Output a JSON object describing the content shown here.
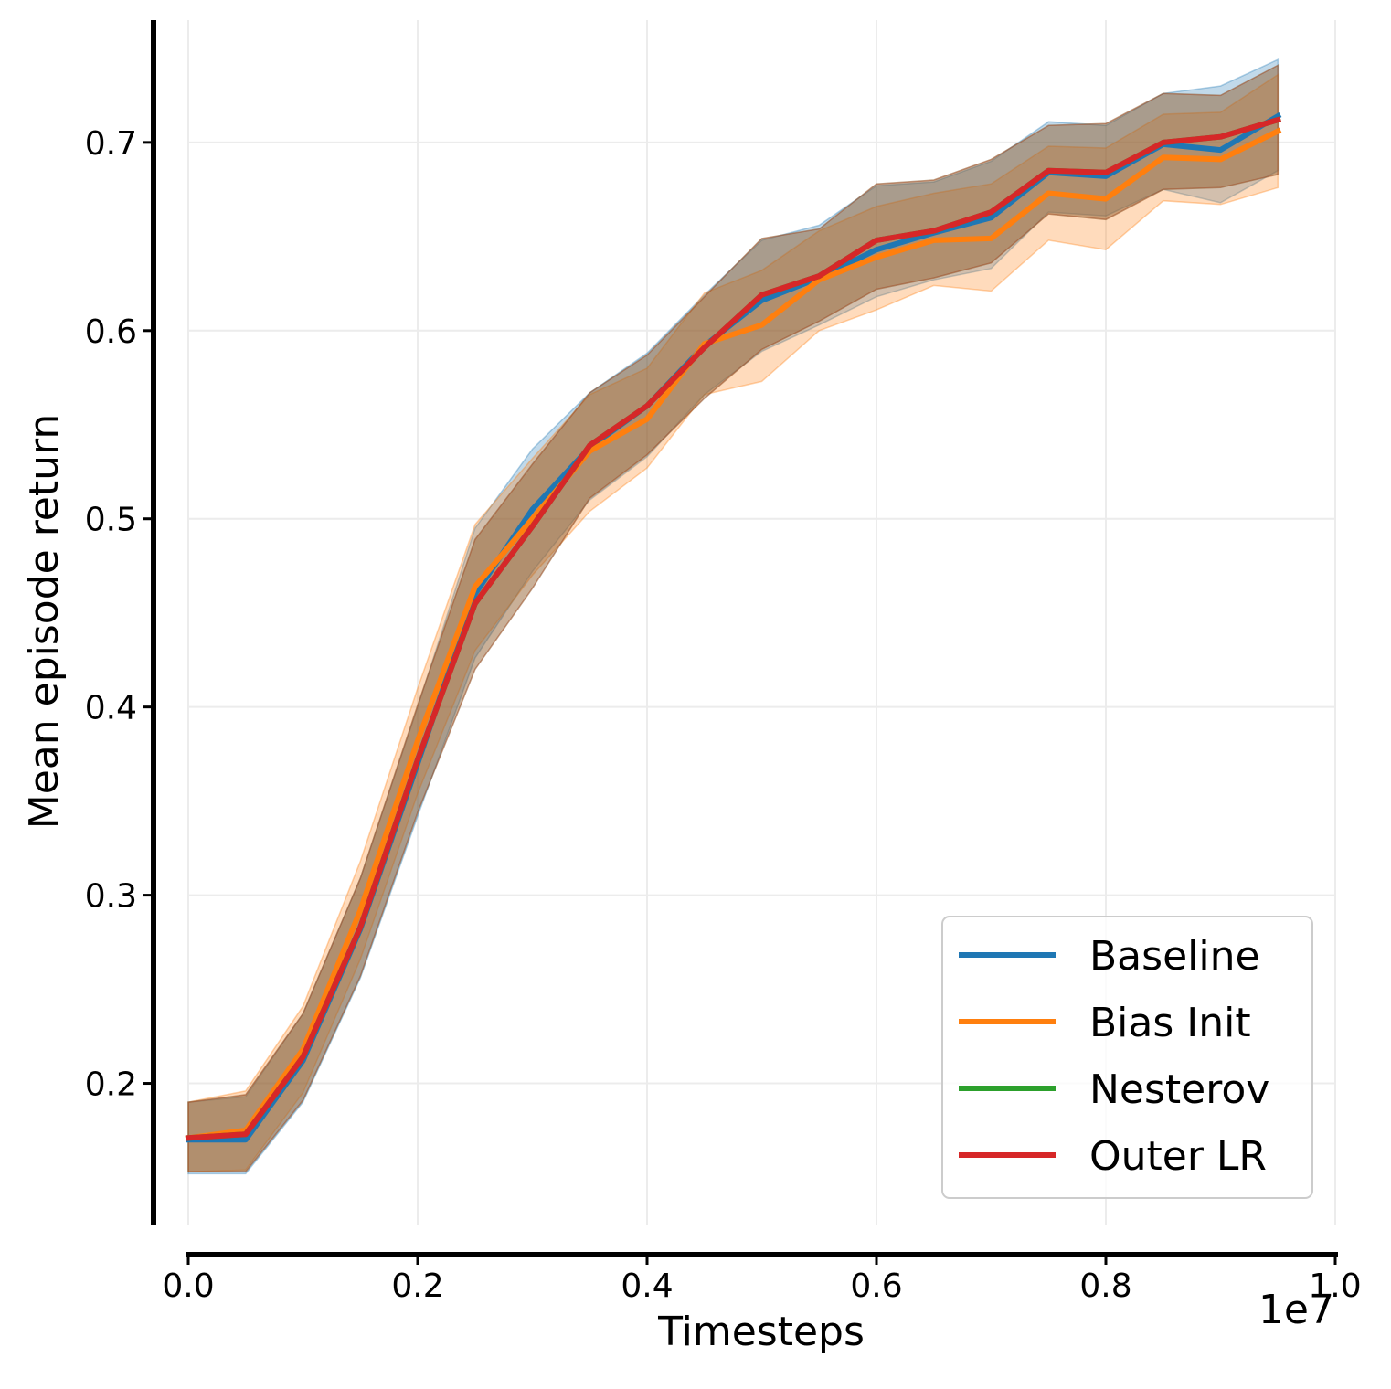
{
  "chart_data": {
    "type": "line",
    "title": "",
    "xlabel": "Timesteps",
    "ylabel": "Mean episode return",
    "x_offset_label": "1e7",
    "xlim": [
      0.0,
      1.0
    ],
    "ylim": [
      0.125,
      0.765
    ],
    "xticks": [
      0.0,
      0.2,
      0.4,
      0.6,
      0.8,
      1.0
    ],
    "xtick_labels": [
      "0.0",
      "0.2",
      "0.4",
      "0.6",
      "0.8",
      "1.0"
    ],
    "yticks": [
      0.2,
      0.3,
      0.4,
      0.5,
      0.6,
      0.7
    ],
    "ytick_labels": [
      "0.2",
      "0.3",
      "0.4",
      "0.5",
      "0.6",
      "0.7"
    ],
    "grid": true,
    "legend_position": "bottom-right",
    "x": [
      0.0,
      0.05,
      0.1,
      0.15,
      0.2,
      0.25,
      0.3,
      0.35,
      0.4,
      0.45,
      0.5,
      0.55,
      0.6,
      0.65,
      0.7,
      0.75,
      0.8,
      0.85,
      0.9,
      0.95
    ],
    "series": [
      {
        "name": "Baseline",
        "color": "#1f77b4",
        "values": [
          0.17,
          0.17,
          0.212,
          0.282,
          0.37,
          0.46,
          0.505,
          0.538,
          0.56,
          0.592,
          0.616,
          0.628,
          0.643,
          0.652,
          0.66,
          0.684,
          0.682,
          0.699,
          0.696,
          0.714
        ],
        "lower": [
          0.152,
          0.152,
          0.19,
          0.256,
          0.342,
          0.426,
          0.472,
          0.51,
          0.533,
          0.566,
          0.589,
          0.603,
          0.618,
          0.627,
          0.633,
          0.663,
          0.661,
          0.675,
          0.668,
          0.685
        ],
        "upper": [
          0.19,
          0.193,
          0.237,
          0.309,
          0.4,
          0.495,
          0.537,
          0.567,
          0.588,
          0.619,
          0.648,
          0.656,
          0.677,
          0.679,
          0.69,
          0.711,
          0.709,
          0.726,
          0.73,
          0.744
        ]
      },
      {
        "name": "Bias Init",
        "color": "#ff7f0e",
        "values": [
          0.171,
          0.175,
          0.218,
          0.292,
          0.382,
          0.464,
          0.5,
          0.536,
          0.553,
          0.593,
          0.603,
          0.627,
          0.639,
          0.648,
          0.649,
          0.673,
          0.67,
          0.692,
          0.691,
          0.706
        ],
        "lower": [
          0.153,
          0.154,
          0.195,
          0.266,
          0.354,
          0.43,
          0.47,
          0.504,
          0.527,
          0.566,
          0.573,
          0.6,
          0.611,
          0.624,
          0.621,
          0.648,
          0.643,
          0.669,
          0.667,
          0.676
        ],
        "upper": [
          0.19,
          0.196,
          0.241,
          0.318,
          0.41,
          0.497,
          0.532,
          0.566,
          0.58,
          0.62,
          0.632,
          0.653,
          0.666,
          0.673,
          0.678,
          0.698,
          0.697,
          0.715,
          0.716,
          0.736
        ]
      },
      {
        "name": "Nesterov",
        "color": "#2ca02c",
        "values": [
          0.171,
          0.173,
          0.214,
          0.283,
          0.372,
          0.455,
          0.496,
          0.539,
          0.56,
          0.591,
          0.619,
          0.629,
          0.648,
          0.653,
          0.663,
          0.685,
          0.684,
          0.7,
          0.703,
          0.712
        ],
        "lower": [
          0.153,
          0.153,
          0.191,
          0.257,
          0.344,
          0.42,
          0.463,
          0.511,
          0.534,
          0.564,
          0.59,
          0.605,
          0.622,
          0.628,
          0.636,
          0.662,
          0.659,
          0.675,
          0.676,
          0.683
        ],
        "upper": [
          0.19,
          0.194,
          0.237,
          0.309,
          0.401,
          0.489,
          0.529,
          0.567,
          0.587,
          0.618,
          0.649,
          0.654,
          0.678,
          0.68,
          0.691,
          0.709,
          0.71,
          0.726,
          0.725,
          0.741
        ]
      },
      {
        "name": "Outer LR",
        "color": "#d62728",
        "values": [
          0.171,
          0.173,
          0.214,
          0.283,
          0.372,
          0.455,
          0.496,
          0.539,
          0.56,
          0.591,
          0.619,
          0.629,
          0.648,
          0.653,
          0.663,
          0.685,
          0.684,
          0.7,
          0.703,
          0.712
        ],
        "lower": [
          0.153,
          0.153,
          0.191,
          0.257,
          0.344,
          0.42,
          0.463,
          0.511,
          0.534,
          0.564,
          0.59,
          0.605,
          0.622,
          0.628,
          0.636,
          0.662,
          0.659,
          0.675,
          0.676,
          0.683
        ],
        "upper": [
          0.19,
          0.194,
          0.237,
          0.309,
          0.401,
          0.489,
          0.529,
          0.567,
          0.587,
          0.618,
          0.649,
          0.654,
          0.678,
          0.68,
          0.691,
          0.709,
          0.71,
          0.726,
          0.725,
          0.741
        ]
      }
    ]
  }
}
